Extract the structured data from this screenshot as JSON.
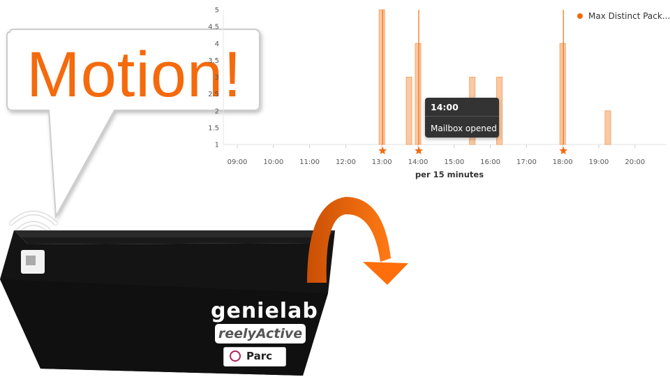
{
  "speech_bubble": {
    "text": "Motion!"
  },
  "tooltip": {
    "time": "14:00",
    "text": "Mailbox opened"
  },
  "device_labels": {
    "brand1": "genielab",
    "brand2": "reelyActive",
    "brand3": "Parc"
  },
  "colors": {
    "accent": "#f46a0c",
    "bar_fill": "#f9c9a3",
    "bar_stroke": "#f4a66a"
  },
  "chart_data": {
    "type": "bar",
    "xlabel": "per 15 minutes",
    "ylabel": "",
    "x_range": [
      "08:45",
      "21:00"
    ],
    "x_ticks": [
      "09:00",
      "10:00",
      "11:00",
      "12:00",
      "13:00",
      "14:00",
      "15:00",
      "16:00",
      "17:00",
      "18:00",
      "19:00",
      "20:00"
    ],
    "y_ticks": [
      "1",
      "1.5",
      "2",
      "2.5",
      "3",
      "3.5",
      "4",
      "4.5",
      "5"
    ],
    "ylim": [
      1,
      5
    ],
    "grid": false,
    "legend_position": "top-right",
    "series": [
      {
        "name": "Max Distinct Pack...",
        "points": [
          {
            "x": "13:00",
            "y": 5
          },
          {
            "x": "13:45",
            "y": 3
          },
          {
            "x": "14:00",
            "y": 4
          },
          {
            "x": "15:30",
            "y": 3
          },
          {
            "x": "16:15",
            "y": 3
          },
          {
            "x": "18:00",
            "y": 4
          },
          {
            "x": "19:15",
            "y": 2
          }
        ]
      }
    ],
    "annotations": [
      {
        "x": "13:00",
        "label": ""
      },
      {
        "x": "14:00",
        "label": "Mailbox opened"
      },
      {
        "x": "18:00",
        "label": ""
      }
    ]
  }
}
